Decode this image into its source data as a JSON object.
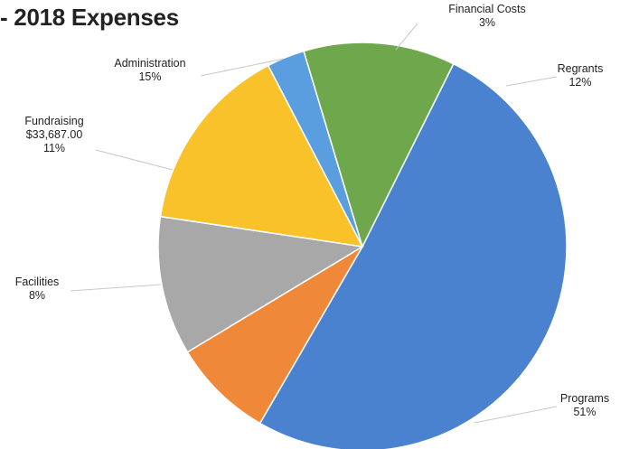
{
  "chart_data": {
    "type": "pie",
    "title": "- 2018 Expenses",
    "slices": [
      {
        "name": "Financial Costs",
        "percent": 3,
        "value_label": "",
        "color": "#5a9ee0"
      },
      {
        "name": "Regrants",
        "percent": 12,
        "value_label": "",
        "color": "#6fa84c"
      },
      {
        "name": "Programs",
        "percent": 51,
        "value_label": "",
        "color": "#4a82d0"
      },
      {
        "name": "Facilities",
        "percent": 8,
        "value_label": "",
        "color": "#f0883a"
      },
      {
        "name": "Fundraising",
        "percent": 11,
        "value_label": "$33,687.00",
        "color": "#a8a8a8"
      },
      {
        "name": "Administration",
        "percent": 15,
        "value_label": "",
        "color": "#f9c22a"
      }
    ]
  }
}
